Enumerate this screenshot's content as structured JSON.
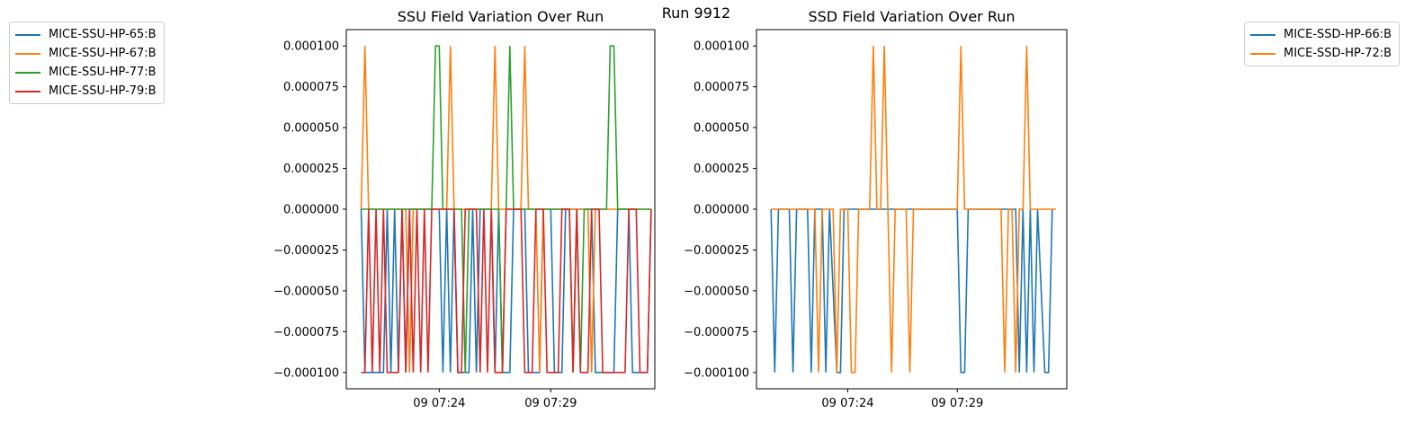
{
  "figure_title": "Run 9912",
  "chart_data": [
    {
      "type": "line",
      "title": "SSU Field Variation Over Run",
      "xlabel": "",
      "ylabel": "",
      "x_range": [
        "09 07:19:50",
        "09 07:33:40"
      ],
      "ylim": [
        -0.00011,
        0.00011
      ],
      "y_ticks": [
        -0.0001,
        -7.5e-05,
        -5e-05,
        -2.5e-05,
        0,
        2.5e-05,
        5e-05,
        7.5e-05,
        0.0001
      ],
      "y_tick_labels": [
        "−0.000100",
        "−0.000075",
        "−0.000050",
        "−0.000025",
        "0.000000",
        "0.000025",
        "0.000050",
        "0.000075",
        "0.000100"
      ],
      "x_ticks": [
        "09 07:24:00",
        "09 07:29:00"
      ],
      "x_tick_labels": [
        "09 07:24",
        "09 07:29"
      ],
      "grid": false,
      "legend_placement": "outside-left",
      "series": [
        {
          "name": "MICE-SSU-HP-65:B",
          "color": "#1f77b4",
          "x": [
            "09 07:20:30",
            "09 07:20:40",
            "09 07:21:30",
            "09 07:21:40",
            "09 07:21:50",
            "09 07:22:00",
            "09 07:22:10",
            "09 07:22:20",
            "09 07:22:30",
            "09 07:22:40",
            "09 07:24:00",
            "09 07:24:10",
            "09 07:24:20",
            "09 07:24:30",
            "09 07:24:40",
            "09 07:24:50",
            "09 07:25:20",
            "09 07:25:30",
            "09 07:25:40",
            "09 07:25:50",
            "09 07:26:20",
            "09 07:26:30",
            "09 07:26:40",
            "09 07:26:50",
            "09 07:27:10",
            "09 07:27:20",
            "09 07:27:50",
            "09 07:28:00",
            "09 07:28:30",
            "09 07:28:40",
            "09 07:29:00",
            "09 07:29:10",
            "09 07:29:30",
            "09 07:29:40",
            "09 07:30:50",
            "09 07:31:00",
            "09 07:31:50",
            "09 07:32:00",
            "09 07:32:30",
            "09 07:32:40",
            "09 07:33:20",
            "09 07:33:30"
          ],
          "y": [
            0,
            -0.0001,
            -0.0001,
            0,
            -0.0001,
            0,
            -0.0001,
            0,
            -0.0001,
            0,
            0,
            -0.0001,
            0,
            -0.0001,
            0,
            -0.0001,
            -0.0001,
            0,
            -0.0001,
            0,
            0,
            -0.0001,
            0,
            -0.0001,
            -0.0001,
            0,
            0,
            -0.0001,
            -0.0001,
            0,
            0,
            -0.0001,
            -0.0001,
            0,
            0,
            -0.0001,
            -0.0001,
            0,
            0,
            -0.0001,
            -0.0001,
            0
          ]
        },
        {
          "name": "MICE-SSU-HP-67:B",
          "color": "#ff7f0e",
          "x": [
            "09 07:20:30",
            "09 07:20:40",
            "09 07:20:50",
            "09 07:22:30",
            "09 07:22:40",
            "09 07:22:50",
            "09 07:24:20",
            "09 07:24:30",
            "09 07:24:40",
            "09 07:26:20",
            "09 07:26:30",
            "09 07:26:40",
            "09 07:27:40",
            "09 07:27:50",
            "09 07:28:00",
            "09 07:28:20",
            "09 07:28:30",
            "09 07:28:40",
            "09 07:30:40",
            "09 07:30:50",
            "09 07:31:00",
            "09 07:33:30"
          ],
          "y": [
            0,
            0.0001,
            0,
            0,
            -0.0001,
            0,
            0,
            0.0001,
            0,
            0,
            0.0001,
            0,
            0,
            0.0001,
            0,
            0,
            -0.0001,
            0,
            0,
            -0.0001,
            0,
            0
          ]
        },
        {
          "name": "MICE-SSU-HP-77:B",
          "color": "#2ca02c",
          "x": [
            "09 07:20:30",
            "09 07:23:40",
            "09 07:23:50",
            "09 07:24:00",
            "09 07:24:10",
            "09 07:25:00",
            "09 07:25:10",
            "09 07:25:20",
            "09 07:26:40",
            "09 07:26:50",
            "09 07:27:00",
            "09 07:27:10",
            "09 07:27:20",
            "09 07:29:50",
            "09 07:30:00",
            "09 07:30:10",
            "09 07:30:20",
            "09 07:30:30",
            "09 07:31:30",
            "09 07:31:40",
            "09 07:31:50",
            "09 07:32:00",
            "09 07:33:30"
          ],
          "y": [
            0,
            0,
            0.0001,
            0.0001,
            0,
            0,
            -0.0001,
            0,
            0,
            -0.0001,
            0,
            0.0001,
            0,
            0,
            -0.0001,
            0,
            -0.0001,
            0,
            0,
            0.0001,
            0.0001,
            0,
            0
          ]
        },
        {
          "name": "MICE-SSU-HP-79:B",
          "color": "#d62728",
          "x": [
            "09 07:20:30",
            "09 07:20:40",
            "09 07:20:50",
            "09 07:21:00",
            "09 07:21:10",
            "09 07:21:20",
            "09 07:21:30",
            "09 07:21:40",
            "09 07:22:10",
            "09 07:22:20",
            "09 07:22:30",
            "09 07:22:40",
            "09 07:22:50",
            "09 07:23:00",
            "09 07:23:10",
            "09 07:23:20",
            "09 07:23:30",
            "09 07:23:40",
            "09 07:24:40",
            "09 07:24:50",
            "09 07:25:00",
            "09 07:25:10",
            "09 07:25:40",
            "09 07:25:50",
            "09 07:26:00",
            "09 07:26:10",
            "09 07:26:20",
            "09 07:26:30",
            "09 07:26:50",
            "09 07:27:00",
            "09 07:27:40",
            "09 07:27:50",
            "09 07:28:10",
            "09 07:28:20",
            "09 07:28:40",
            "09 07:28:50",
            "09 07:29:20",
            "09 07:29:30",
            "09 07:29:50",
            "09 07:30:00",
            "09 07:30:10",
            "09 07:30:20",
            "09 07:30:40",
            "09 07:30:50",
            "09 07:31:10",
            "09 07:31:20",
            "09 07:32:20",
            "09 07:32:30",
            "09 07:32:50",
            "09 07:33:00",
            "09 07:33:20",
            "09 07:33:30"
          ],
          "y": [
            -0.0001,
            -0.0001,
            0,
            -0.0001,
            0,
            -0.0001,
            0,
            -0.0001,
            -0.0001,
            0,
            -0.0001,
            0,
            -0.0001,
            0,
            -0.0001,
            0,
            -0.0001,
            0,
            0,
            -0.0001,
            -0.0001,
            0,
            0,
            -0.0001,
            0,
            -0.0001,
            0,
            -0.0001,
            -0.0001,
            0,
            0,
            -0.0001,
            -0.0001,
            0,
            0,
            -0.0001,
            -0.0001,
            0,
            0,
            -0.0001,
            0,
            -0.0001,
            -0.0001,
            0,
            0,
            -0.0001,
            -0.0001,
            0,
            0,
            -0.0001,
            -0.0001,
            0
          ]
        }
      ]
    },
    {
      "type": "line",
      "title": "SSD Field Variation Over Run",
      "xlabel": "",
      "ylabel": "",
      "x_range": [
        "09 07:19:50",
        "09 07:34:00"
      ],
      "ylim": [
        -0.00011,
        0.00011
      ],
      "y_ticks": [
        -0.0001,
        -7.5e-05,
        -5e-05,
        -2.5e-05,
        0,
        2.5e-05,
        5e-05,
        7.5e-05,
        0.0001
      ],
      "y_tick_labels": [
        "−0.000100",
        "−0.000075",
        "−0.000050",
        "−0.000025",
        "0.000000",
        "0.000025",
        "0.000050",
        "0.000075",
        "0.000100"
      ],
      "x_ticks": [
        "09 07:24:00",
        "09 07:29:00"
      ],
      "x_tick_labels": [
        "09 07:24",
        "09 07:29"
      ],
      "grid": false,
      "legend_placement": "outside-right",
      "series": [
        {
          "name": "MICE-SSD-HP-66:B",
          "color": "#1f77b4",
          "x": [
            "09 07:20:30",
            "09 07:20:40",
            "09 07:20:50",
            "09 07:21:20",
            "09 07:21:30",
            "09 07:21:40",
            "09 07:22:10",
            "09 07:22:20",
            "09 07:22:30",
            "09 07:22:50",
            "09 07:23:00",
            "09 07:23:10",
            "09 07:23:30",
            "09 07:23:40",
            "09 07:23:50",
            "09 07:24:00",
            "09 07:29:00",
            "09 07:29:10",
            "09 07:29:20",
            "09 07:29:30",
            "09 07:31:40",
            "09 07:31:50",
            "09 07:32:00",
            "09 07:32:10",
            "09 07:32:20",
            "09 07:32:30",
            "09 07:32:40",
            "09 07:33:00",
            "09 07:33:10",
            "09 07:33:20"
          ],
          "y": [
            0,
            -0.0001,
            0,
            0,
            -0.0001,
            0,
            0,
            -0.0001,
            0,
            0,
            -0.0001,
            0,
            -0.0001,
            -0.0001,
            0,
            0,
            0,
            -0.0001,
            -0.0001,
            0,
            0,
            -0.0001,
            0,
            -0.0001,
            0,
            -0.0001,
            0,
            -0.0001,
            -0.0001,
            0
          ]
        },
        {
          "name": "MICE-SSD-HP-72:B",
          "color": "#ff7f0e",
          "x": [
            "09 07:20:30",
            "09 07:22:30",
            "09 07:22:40",
            "09 07:22:50",
            "09 07:23:20",
            "09 07:23:30",
            "09 07:23:40",
            "09 07:24:00",
            "09 07:24:10",
            "09 07:24:20",
            "09 07:24:30",
            "09 07:24:40",
            "09 07:25:00",
            "09 07:25:10",
            "09 07:25:20",
            "09 07:25:30",
            "09 07:25:40",
            "09 07:25:50",
            "09 07:26:00",
            "09 07:26:10",
            "09 07:26:40",
            "09 07:26:50",
            "09 07:27:00",
            "09 07:29:00",
            "09 07:29:10",
            "09 07:29:20",
            "09 07:31:00",
            "09 07:31:10",
            "09 07:31:20",
            "09 07:31:30",
            "09 07:31:40",
            "09 07:31:50",
            "09 07:32:00",
            "09 07:32:10",
            "09 07:32:20",
            "09 07:32:30",
            "09 07:32:40",
            "09 07:33:30"
          ],
          "y": [
            0,
            0,
            -0.0001,
            0,
            0,
            -0.0001,
            0,
            0,
            -0.0001,
            -0.0001,
            0,
            0,
            0,
            0.0001,
            0,
            0,
            0.0001,
            0,
            -0.0001,
            0,
            0,
            -0.0001,
            0,
            0,
            0.0001,
            0,
            0,
            -0.0001,
            0,
            0,
            -0.0001,
            0,
            0,
            0.0001,
            0,
            0,
            0,
            0
          ]
        }
      ]
    }
  ]
}
